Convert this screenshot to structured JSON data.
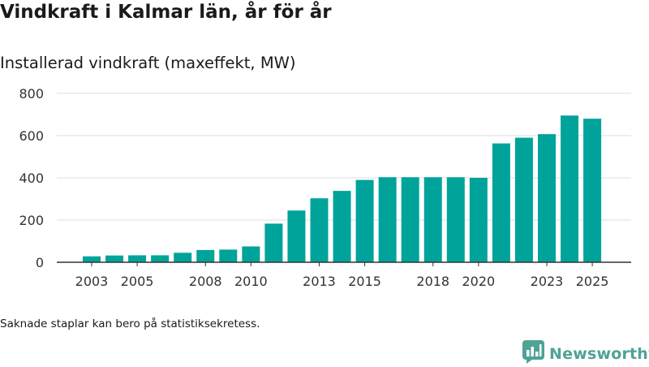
{
  "header": {
    "title": "Vindkraft i Kalmar län, år för år",
    "subtitle": "Installerad vindkraft (maxeffekt, MW)"
  },
  "footnote": "Saknade staplar kan bero på statistiksekretess.",
  "brand": {
    "name": "Newsworthy",
    "color": "#4fa296",
    "icon": "newsworthy-logo-icon"
  },
  "colors": {
    "bar": "#00a39a",
    "grid": "#dddddd",
    "axis": "#333333"
  },
  "chart_data": {
    "type": "bar",
    "title": "Vindkraft i Kalmar län, år för år",
    "subtitle": "Installerad vindkraft (maxeffekt, MW)",
    "xlabel": "",
    "ylabel": "",
    "categories": [
      "2003",
      "2004",
      "2005",
      "2006",
      "2007",
      "2008",
      "2009",
      "2010",
      "2011",
      "2012",
      "2013",
      "2014",
      "2015",
      "2016",
      "2017",
      "2018",
      "2019",
      "2020",
      "2021",
      "2022",
      "2023",
      "2024",
      "2025"
    ],
    "values": [
      28,
      32,
      33,
      33,
      45,
      58,
      60,
      75,
      183,
      245,
      303,
      338,
      390,
      403,
      403,
      403,
      403,
      400,
      563,
      590,
      607,
      695,
      680
    ],
    "x_tick_labels": [
      "2003",
      "2005",
      "2008",
      "2010",
      "2013",
      "2015",
      "2018",
      "2020",
      "2023",
      "2025"
    ],
    "y_ticks": [
      0,
      200,
      400,
      600,
      800
    ],
    "ylim": [
      0,
      800
    ],
    "grid": true,
    "legend": "none"
  }
}
